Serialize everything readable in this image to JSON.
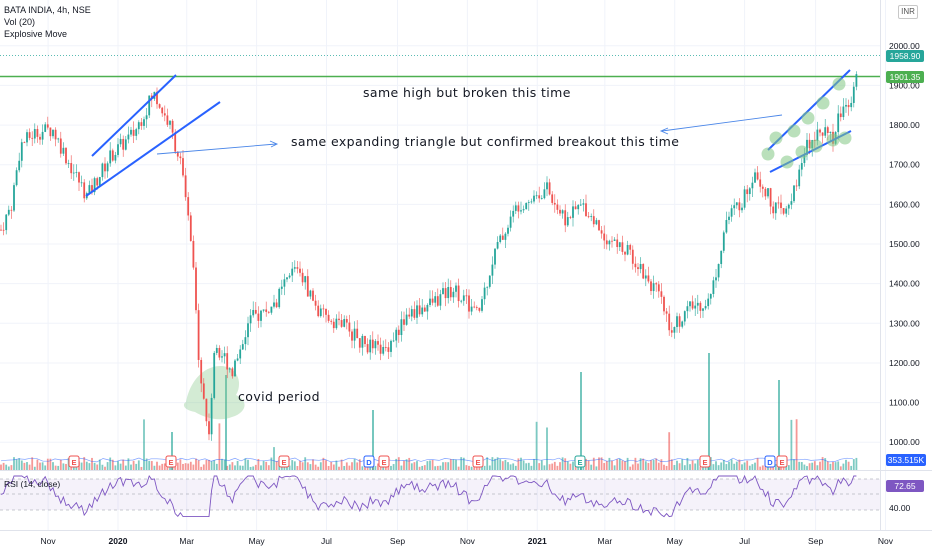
{
  "header": {
    "symbol_line": "BATA INDIA, 4h, NSE",
    "volume_label": "Vol (20)",
    "indicator_label": "Explosive Move"
  },
  "currency_button": "INR",
  "price_tags": {
    "last_price": "1958.90",
    "resistance": "1901.35",
    "volume": "353.515K",
    "rsi": "72.65"
  },
  "rsi_panel": {
    "label": "RSI (14, close)",
    "tick": "40.00"
  },
  "annotations": {
    "high_note": "same high but broken this time",
    "triangle_note": "same expanding triangle but confirmed breakout this time",
    "covid_note": "covid period"
  },
  "colors": {
    "up": "#26a69a",
    "down": "#ef5350",
    "trendline": "#2962ff",
    "resistance": "#4caf50",
    "rsi_line": "#7e57c2",
    "highlight": "#81c784"
  },
  "chart_data": {
    "type": "candlestick",
    "title": "BATA INDIA, 4h, NSE",
    "ylim": [
      930,
      2060
    ],
    "y_ticks": [
      1000,
      1100,
      1200,
      1300,
      1400,
      1500,
      1600,
      1700,
      1800,
      1900,
      2000
    ],
    "y_tick_labels": [
      "1000.00",
      "1100.00",
      "1200.00",
      "1300.00",
      "1400.00",
      "1500.00",
      "1600.00",
      "1700.00",
      "1800.00",
      "1900.00",
      "2000.00"
    ],
    "x_labels": [
      "Nov",
      "2020",
      "Mar",
      "May",
      "Jul",
      "Sep",
      "Nov",
      "2021",
      "Mar",
      "May",
      "Jul",
      "Sep",
      "Nov"
    ],
    "price_path": [
      {
        "date": "2019-09-20",
        "close": 1530
      },
      {
        "date": "2019-09-30",
        "close": 1600
      },
      {
        "date": "2019-10-08",
        "close": 1750
      },
      {
        "date": "2019-10-20",
        "close": 1780
      },
      {
        "date": "2019-11-05",
        "close": 1790
      },
      {
        "date": "2019-11-20",
        "close": 1700
      },
      {
        "date": "2019-12-05",
        "close": 1620
      },
      {
        "date": "2019-12-25",
        "close": 1720
      },
      {
        "date": "2020-01-15",
        "close": 1780
      },
      {
        "date": "2020-02-01",
        "close": 1880
      },
      {
        "date": "2020-02-15",
        "close": 1800
      },
      {
        "date": "2020-02-25",
        "close": 1700
      },
      {
        "date": "2020-03-05",
        "close": 1500
      },
      {
        "date": "2020-03-12",
        "close": 1200
      },
      {
        "date": "2020-03-20",
        "close": 1010
      },
      {
        "date": "2020-03-26",
        "close": 1250
      },
      {
        "date": "2020-04-10",
        "close": 1180
      },
      {
        "date": "2020-04-25",
        "close": 1310
      },
      {
        "date": "2020-05-15",
        "close": 1340
      },
      {
        "date": "2020-06-05",
        "close": 1450
      },
      {
        "date": "2020-06-25",
        "close": 1320
      },
      {
        "date": "2020-07-15",
        "close": 1300
      },
      {
        "date": "2020-08-01",
        "close": 1250
      },
      {
        "date": "2020-08-20",
        "close": 1230
      },
      {
        "date": "2020-09-10",
        "close": 1320
      },
      {
        "date": "2020-09-30",
        "close": 1350
      },
      {
        "date": "2020-10-20",
        "close": 1390
      },
      {
        "date": "2020-11-10",
        "close": 1320
      },
      {
        "date": "2020-11-25",
        "close": 1480
      },
      {
        "date": "2020-12-15",
        "close": 1600
      },
      {
        "date": "2021-01-10",
        "close": 1640
      },
      {
        "date": "2021-01-25",
        "close": 1560
      },
      {
        "date": "2021-02-10",
        "close": 1600
      },
      {
        "date": "2021-03-01",
        "close": 1520
      },
      {
        "date": "2021-03-25",
        "close": 1470
      },
      {
        "date": "2021-04-15",
        "close": 1380
      },
      {
        "date": "2021-04-28",
        "close": 1290
      },
      {
        "date": "2021-05-15",
        "close": 1340
      },
      {
        "date": "2021-06-01",
        "close": 1360
      },
      {
        "date": "2021-06-15",
        "close": 1560
      },
      {
        "date": "2021-07-01",
        "close": 1620
      },
      {
        "date": "2021-07-10",
        "close": 1690
      },
      {
        "date": "2021-07-25",
        "close": 1600
      },
      {
        "date": "2021-08-05",
        "close": 1570
      },
      {
        "date": "2021-08-15",
        "close": 1650
      },
      {
        "date": "2021-08-25",
        "close": 1750
      },
      {
        "date": "2021-09-05",
        "close": 1800
      },
      {
        "date": "2021-09-15",
        "close": 1760
      },
      {
        "date": "2021-09-22",
        "close": 1830
      },
      {
        "date": "2021-10-01",
        "close": 1860
      },
      {
        "date": "2021-10-08",
        "close": 1960
      }
    ],
    "resistance_level": 1901.35,
    "last_price": 1958.9,
    "volume_last": "353.515K",
    "rsi_last": 72.65
  }
}
